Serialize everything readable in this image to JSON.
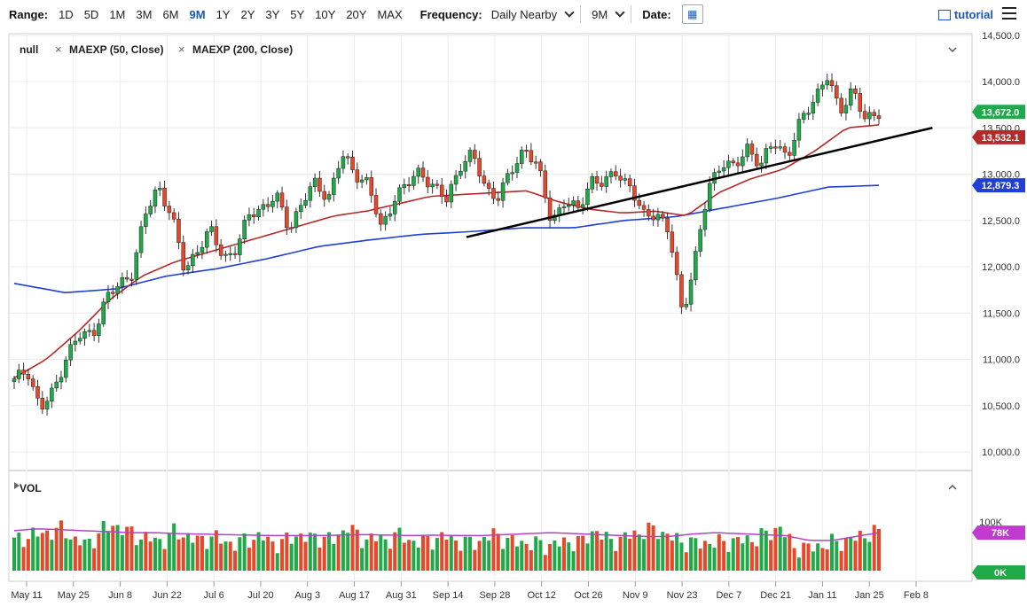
{
  "toolbar": {
    "range_label": "Range:",
    "ranges": [
      "1D",
      "5D",
      "1M",
      "3M",
      "6M",
      "9M",
      "1Y",
      "2Y",
      "3Y",
      "5Y",
      "10Y",
      "20Y",
      "MAX"
    ],
    "active_range": "9M",
    "frequency_label": "Frequency:",
    "frequency_value": "Daily Nearby",
    "period_value": "9M",
    "date_label": "Date:",
    "tutorial_label": "tutorial"
  },
  "legend": {
    "symbol": "null",
    "studies": [
      "MAEXP (50, Close)",
      "MAEXP (200, Close)"
    ]
  },
  "volume_panel": {
    "label": "VOL"
  },
  "colors": {
    "up": "#1faa4a",
    "down": "#e8472a",
    "ma50": "#b52a2a",
    "ma200": "#1f3fd6",
    "trendline": "#000000",
    "price_badge": "#1faa4a",
    "vol_badge": "#c23bd1"
  },
  "chart_data": [
    {
      "type": "candlestick",
      "title": "",
      "y_ticks": [
        "10,000.0",
        "10,500.0",
        "11,000.0",
        "11,500.0",
        "12,000.0",
        "12,500.0",
        "13,000.0",
        "13,500.0",
        "14,000.0",
        "14,500.0"
      ],
      "ylim": [
        9900,
        14500
      ],
      "x_ticks": [
        "May 11",
        "May 25",
        "Jun 8",
        "Jun 22",
        "Jul 6",
        "Jul 20",
        "Aug 3",
        "Aug 17",
        "Aug 31",
        "Sep 14",
        "Sep 28",
        "Oct 12",
        "Oct 26",
        "Nov 9",
        "Nov 23",
        "Dec 7",
        "Dec 21",
        "Jan 11",
        "Jan 25",
        "Feb 8"
      ],
      "close_path": [
        10760,
        10900,
        10450,
        10650,
        11050,
        11250,
        11280,
        11650,
        11800,
        11950,
        12550,
        12880,
        12560,
        11950,
        12200,
        12380,
        12100,
        12200,
        12580,
        12650,
        12750,
        12420,
        12700,
        12900,
        12750,
        13200,
        13020,
        12900,
        12400,
        12750,
        12880,
        13050,
        12850,
        12720,
        13100,
        13200,
        12850,
        12750,
        13050,
        13300,
        13050,
        12500,
        12700,
        12600,
        12950,
        12880,
        13050,
        12850,
        12550,
        12600,
        12350,
        11500,
        12100,
        12850,
        13150,
        13050,
        13300,
        13100,
        13350,
        13200,
        13550,
        13800,
        14080,
        13650,
        13950,
        13550,
        13672
      ],
      "ma50_path": [
        10800,
        11000,
        11300,
        11650,
        11900,
        12050,
        12150,
        12250,
        12350,
        12450,
        12550,
        12600,
        12680,
        12760,
        12780,
        12800,
        12820,
        12700,
        12620,
        12580,
        12600,
        12550,
        12800,
        12950,
        13050,
        13250,
        13500,
        13532
      ],
      "ma200_path": [
        11820,
        11720,
        11760,
        11900,
        11980,
        12090,
        12220,
        12290,
        12350,
        12380,
        12420,
        12420,
        12500,
        12540,
        12640,
        12740,
        12860,
        12879
      ],
      "trendline": {
        "start_date": "Sep 23",
        "start_value": 12320,
        "end_date": "Feb 13",
        "end_value": 13500
      },
      "last_close_badge": "13,672.0",
      "ma50_badge": "13,532.1",
      "ma200_badge": "12,879.3"
    },
    {
      "type": "bar",
      "panel": "volume",
      "y_ticks": [
        "100K"
      ],
      "current_badge": "78K",
      "zero_badge": "0K",
      "volume_path": [
        60,
        70,
        75,
        80,
        85,
        60,
        55,
        80,
        95,
        82,
        70,
        65,
        60,
        80,
        70,
        60,
        70,
        60,
        55,
        65,
        70,
        55,
        60,
        75,
        65,
        70,
        60,
        95,
        62,
        70,
        60,
        75,
        62,
        58,
        65,
        70,
        60,
        55,
        65,
        75,
        60,
        58,
        55,
        52,
        55,
        60,
        58,
        85,
        62,
        62,
        75,
        80,
        85,
        70,
        60,
        55,
        58,
        56,
        60,
        62,
        65,
        75,
        90,
        50,
        45,
        50,
        55,
        60,
        65,
        75,
        78
      ],
      "vol_ma_path": [
        82,
        86,
        84,
        82,
        80,
        78,
        78,
        76,
        75,
        74,
        73,
        72,
        72,
        72,
        73,
        74,
        73,
        72,
        73,
        72,
        72,
        74,
        76,
        78,
        76,
        74,
        72,
        70,
        70,
        75,
        78,
        76,
        74,
        72,
        62,
        62,
        70,
        78
      ]
    }
  ]
}
